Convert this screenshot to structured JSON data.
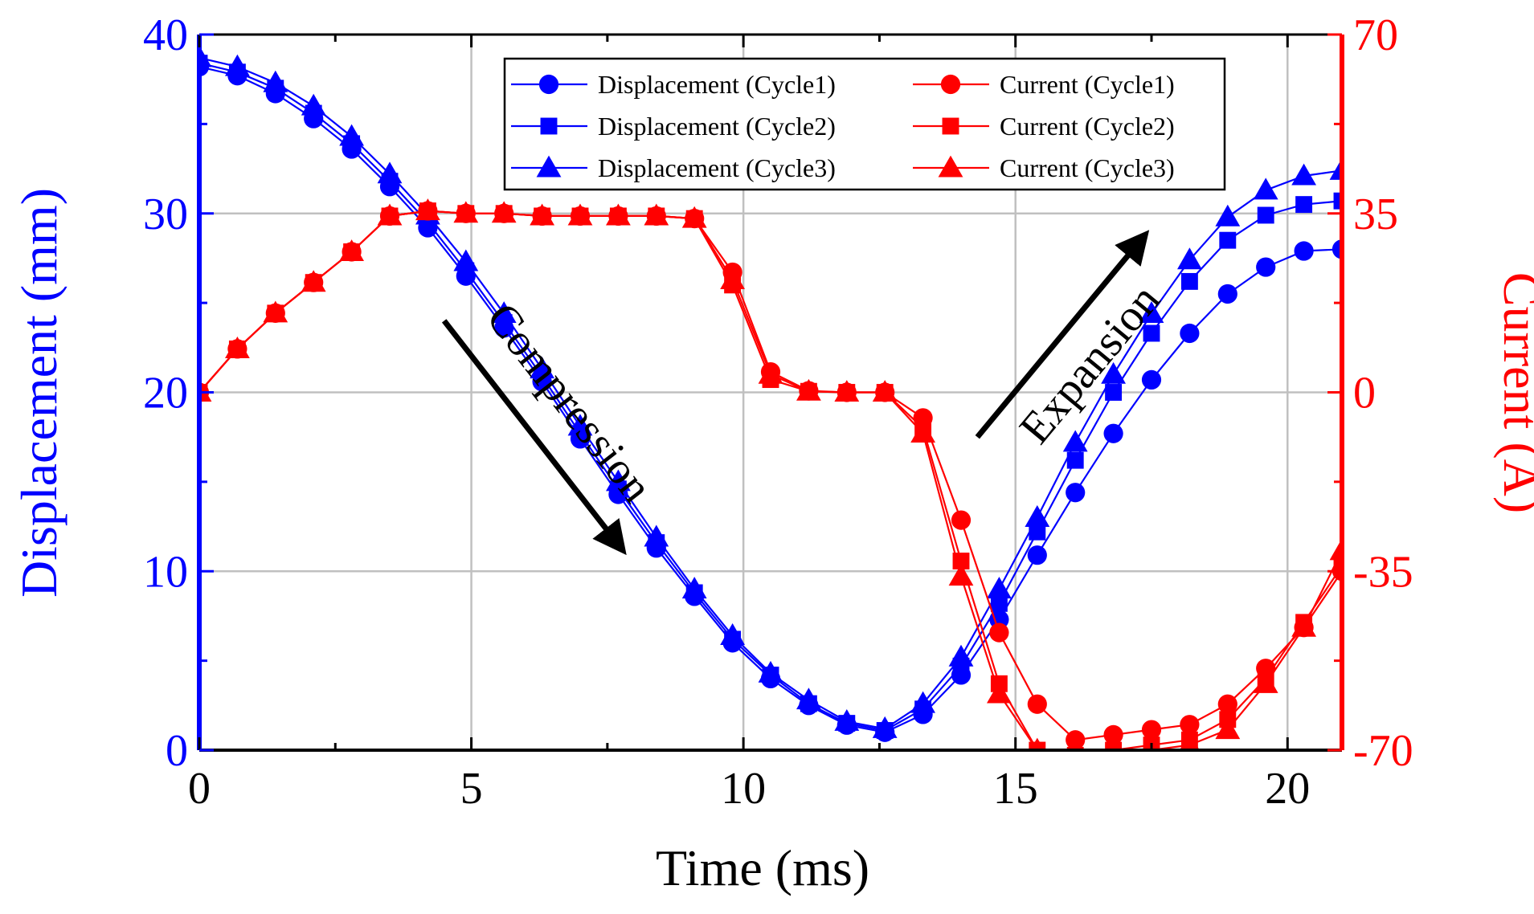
{
  "chart_data": {
    "type": "line",
    "xlabel": "Time (ms)",
    "ylabel_left": "Displacement (mm)",
    "ylabel_right": "Current (A)",
    "xlim": [
      0,
      21
    ],
    "ylim_left": [
      0,
      40
    ],
    "ylim_right": [
      -70,
      70
    ],
    "x_ticks": [
      "0",
      "5",
      "10",
      "15",
      "20"
    ],
    "x_tick_values": [
      0,
      5,
      10,
      15,
      20
    ],
    "y_left_ticks": [
      "0",
      "10",
      "20",
      "30",
      "40"
    ],
    "y_left_tick_values": [
      0,
      10,
      20,
      30,
      40
    ],
    "y_right_ticks": [
      "-70",
      "-35",
      "0",
      "35",
      "70"
    ],
    "y_right_tick_values": [
      -70,
      -35,
      0,
      35,
      70
    ],
    "grid": true,
    "legend_position": "top-right",
    "colors": {
      "displacement": "#0000ff",
      "current": "#ff0000",
      "grid": "#c0c0c0",
      "annotation": "#000000"
    },
    "annotations": [
      {
        "text": "Compression",
        "from": [
          4.5,
          24.0
        ],
        "to": [
          7.7,
          11.5
        ]
      },
      {
        "text": "Expansion",
        "from": [
          14.3,
          17.5
        ],
        "to": [
          17.3,
          28.5
        ]
      }
    ],
    "series": [
      {
        "name": "Displacement (Cycle1)",
        "axis": "left",
        "marker": "circle",
        "color": "#0000ff",
        "x": [
          0,
          0.7,
          1.4,
          2.1,
          2.8,
          3.5,
          4.2,
          4.9,
          5.6,
          6.3,
          7.0,
          7.7,
          8.4,
          9.1,
          9.8,
          10.5,
          11.2,
          11.9,
          12.6,
          13.3,
          14.0,
          14.7,
          15.4,
          16.1,
          16.8,
          17.5,
          18.2,
          18.9,
          19.6,
          20.3,
          21.0
        ],
        "y": [
          38.2,
          37.7,
          36.7,
          35.3,
          33.6,
          31.5,
          29.2,
          26.5,
          23.6,
          20.6,
          17.4,
          14.3,
          11.3,
          8.6,
          6.0,
          4.0,
          2.5,
          1.4,
          1.0,
          2.0,
          4.2,
          7.3,
          10.9,
          14.4,
          17.7,
          20.7,
          23.3,
          25.5,
          27.0,
          27.9,
          28.0
        ]
      },
      {
        "name": "Displacement (Cycle2)",
        "axis": "left",
        "marker": "square",
        "color": "#0000ff",
        "x": [
          0,
          0.7,
          1.4,
          2.1,
          2.8,
          3.5,
          4.2,
          4.9,
          5.6,
          6.3,
          7.0,
          7.7,
          8.4,
          9.1,
          9.8,
          10.5,
          11.2,
          11.9,
          12.6,
          13.3,
          14.0,
          14.7,
          15.4,
          16.1,
          16.8,
          17.5,
          18.2,
          18.9,
          19.6,
          20.3,
          21.0
        ],
        "y": [
          38.4,
          37.9,
          37.0,
          35.6,
          33.9,
          31.8,
          29.5,
          26.8,
          23.9,
          20.9,
          17.7,
          14.6,
          11.6,
          8.8,
          6.2,
          4.2,
          2.6,
          1.5,
          1.1,
          2.3,
          4.7,
          8.2,
          12.2,
          16.2,
          20.0,
          23.3,
          26.2,
          28.5,
          29.9,
          30.5,
          30.7
        ]
      },
      {
        "name": "Displacement (Cycle3)",
        "axis": "left",
        "marker": "triangle",
        "color": "#0000ff",
        "x": [
          0,
          0.7,
          1.4,
          2.1,
          2.8,
          3.5,
          4.2,
          4.9,
          5.6,
          6.3,
          7.0,
          7.7,
          8.4,
          9.1,
          9.8,
          10.5,
          11.2,
          11.9,
          12.6,
          13.3,
          14.0,
          14.7,
          15.4,
          16.1,
          16.8,
          17.5,
          18.2,
          18.9,
          19.6,
          20.3,
          21.0
        ],
        "y": [
          38.7,
          38.2,
          37.3,
          36.0,
          34.3,
          32.2,
          29.9,
          27.3,
          24.4,
          21.3,
          18.1,
          15.0,
          11.9,
          9.0,
          6.4,
          4.3,
          2.8,
          1.6,
          1.2,
          2.6,
          5.2,
          9.0,
          13.0,
          17.2,
          21.0,
          24.4,
          27.4,
          29.8,
          31.3,
          32.1,
          32.4
        ]
      },
      {
        "name": "Current (Cycle1)",
        "axis": "right",
        "marker": "circle",
        "color": "#ff0000",
        "x": [
          0,
          0.7,
          1.4,
          2.1,
          2.8,
          3.5,
          4.2,
          4.9,
          5.6,
          6.3,
          7.0,
          7.7,
          8.4,
          9.1,
          9.8,
          10.5,
          11.2,
          11.9,
          12.6,
          13.3,
          14.0,
          14.7,
          15.4,
          16.1,
          16.8,
          17.5,
          18.2,
          18.9,
          19.6,
          20.3,
          21.0
        ],
        "y": [
          0,
          8.5,
          15.5,
          21.5,
          27.5,
          34.5,
          35.5,
          35,
          35,
          34.5,
          34.5,
          34.5,
          34.5,
          34,
          23.5,
          4,
          0.3,
          0,
          0,
          -5,
          -25,
          -47,
          -61,
          -68,
          -67,
          -66,
          -65,
          -61,
          -54,
          -46,
          -35
        ]
      },
      {
        "name": "Current (Cycle2)",
        "axis": "right",
        "marker": "square",
        "color": "#ff0000",
        "x": [
          0,
          0.7,
          1.4,
          2.1,
          2.8,
          3.5,
          4.2,
          4.9,
          5.6,
          6.3,
          7.0,
          7.7,
          8.4,
          9.1,
          9.8,
          10.5,
          11.2,
          11.9,
          12.6,
          13.3,
          14.0,
          14.7,
          15.4,
          16.1,
          16.8,
          17.5,
          18.2,
          18.9,
          19.6,
          20.3,
          21.0
        ],
        "y": [
          0,
          8.5,
          15.5,
          21.5,
          27.5,
          34.5,
          35.5,
          35,
          35,
          34.5,
          34.5,
          34.5,
          34.5,
          34,
          21,
          2.5,
          0.2,
          0,
          0,
          -7,
          -33,
          -57,
          -70,
          -71,
          -70,
          -69,
          -68,
          -64,
          -56,
          -45,
          -34
        ]
      },
      {
        "name": "Current (Cycle3)",
        "axis": "right",
        "marker": "triangle",
        "color": "#ff0000",
        "x": [
          0,
          0.7,
          1.4,
          2.1,
          2.8,
          3.5,
          4.2,
          4.9,
          5.6,
          6.3,
          7.0,
          7.7,
          8.4,
          9.1,
          9.8,
          10.5,
          11.2,
          11.9,
          12.6,
          13.3,
          14.0,
          14.7,
          15.4,
          16.1,
          16.8,
          17.5,
          18.2,
          18.9,
          19.6,
          20.3,
          21.0
        ],
        "y": [
          0,
          8.5,
          15.5,
          21.5,
          27.5,
          34.5,
          35.5,
          35,
          35,
          34.5,
          34.5,
          34.5,
          34.5,
          34,
          22,
          3.5,
          0.2,
          0,
          0,
          -8,
          -36,
          -59,
          -70,
          -74,
          -71,
          -70,
          -69,
          -66,
          -57,
          -46,
          -31
        ]
      }
    ]
  }
}
